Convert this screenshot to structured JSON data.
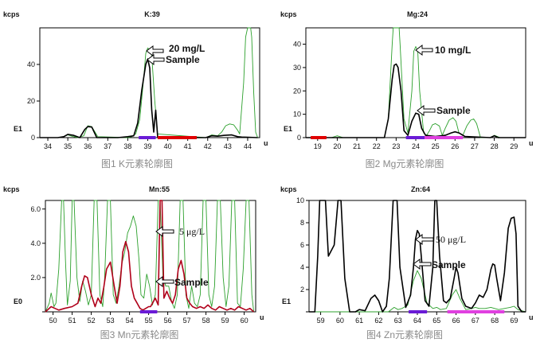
{
  "figure": {
    "panels": [
      {
        "title": "K:39",
        "caption": "图1 K元素轮廓图",
        "unit_label": "kcps",
        "axis_tag": "E1",
        "x_unit": "u",
        "annotations": [
          {
            "text": "20 mg/L"
          },
          {
            "text": "Sample"
          }
        ]
      },
      {
        "title": "Mg:24",
        "caption": "图2 Mg元素轮廓图",
        "unit_label": "kcps",
        "axis_tag": "E1",
        "x_unit": "u",
        "annotations": [
          {
            "text": "10 mg/L"
          },
          {
            "text": "Sample"
          }
        ]
      },
      {
        "title": "Mn:55",
        "caption": "图3 Mn元素轮廓图",
        "unit_label": "kcps",
        "axis_tag": "E0",
        "x_unit": "u",
        "annotations": [
          {
            "text": "5 μg/L"
          },
          {
            "text": "Sample"
          }
        ]
      },
      {
        "title": "Zn:64",
        "caption": "图4 Zn元素轮廓图",
        "unit_label": "kcps",
        "axis_tag": "E1",
        "x_unit": "u",
        "annotations": [
          {
            "text": "50 μg/L"
          },
          {
            "text": "Sample"
          }
        ]
      }
    ]
  },
  "chart_data": [
    {
      "type": "line",
      "title": "K:39",
      "xlabel": "u",
      "ylabel": "kcps",
      "xlim": [
        33.6,
        44.6
      ],
      "ylim": [
        0,
        60
      ],
      "xticks": [
        34,
        35,
        36,
        37,
        38,
        39,
        40,
        41,
        42,
        43,
        44
      ],
      "yticks": [
        0,
        20,
        40
      ],
      "series": [
        {
          "name": "20 mg/L",
          "color": "#2ca02c",
          "x": [
            33.6,
            34.5,
            34.8,
            35.0,
            35.2,
            35.5,
            35.8,
            36.0,
            36.2,
            36.5,
            38.0,
            38.2,
            38.4,
            38.6,
            38.8,
            38.9,
            39.0,
            39.1,
            39.2,
            39.35,
            39.5,
            41.9,
            42.2,
            42.5,
            42.7,
            42.9,
            43.1,
            43.3,
            43.5,
            43.6,
            43.8,
            43.9,
            44.0,
            44.1,
            44.15,
            44.2,
            44.3,
            44.4,
            44.5
          ],
          "y": [
            0,
            0,
            0.5,
            1.5,
            0.8,
            0,
            1.0,
            6.5,
            6.0,
            0.5,
            0,
            0.5,
            2.0,
            10.0,
            33.0,
            46.0,
            49.0,
            48.0,
            45.0,
            20.0,
            2.0,
            0,
            1.5,
            1.0,
            3.0,
            6.5,
            7.5,
            7.0,
            4.0,
            2.0,
            30.0,
            55.0,
            60.0,
            60.0,
            60.0,
            55.0,
            25.0,
            3.0,
            0
          ]
        },
        {
          "name": "Sample",
          "color": "#000000",
          "x": [
            33.6,
            34.5,
            34.8,
            35.0,
            35.3,
            35.6,
            35.85,
            36.0,
            36.2,
            36.45,
            37.5,
            38.0,
            38.3,
            38.5,
            38.7,
            38.9,
            39.0,
            39.1,
            39.2,
            39.3,
            39.4,
            39.5,
            41.9,
            42.2,
            42.5,
            42.8,
            43.2,
            43.5,
            43.7,
            44.0,
            44.5
          ],
          "y": [
            0,
            0,
            0.5,
            1.8,
            1.2,
            0,
            4.5,
            6.0,
            5.8,
            0,
            0,
            0.5,
            1.0,
            8.0,
            26.0,
            40.0,
            43.0,
            38.0,
            15.0,
            3.0,
            15.0,
            0,
            0,
            1.0,
            0.8,
            1.2,
            1.5,
            0.5,
            0.3,
            0.2,
            0
          ]
        }
      ],
      "markers": [
        {
          "from": 38.55,
          "to": 39.4,
          "color": "#6a1bd6"
        },
        {
          "from": 39.5,
          "to": 41.45,
          "color": "#e00000"
        }
      ]
    },
    {
      "type": "line",
      "title": "Mg:24",
      "xlabel": "u",
      "ylabel": "kcps",
      "xlim": [
        18.4,
        29.6
      ],
      "ylim": [
        0,
        47
      ],
      "xticks": [
        19,
        20,
        21,
        22,
        23,
        24,
        25,
        26,
        27,
        28,
        29
      ],
      "yticks": [
        0,
        10,
        20,
        30,
        40
      ],
      "series": [
        {
          "name": "10 mg/L",
          "color": "#2ca02c",
          "x": [
            18.4,
            19.7,
            20.0,
            20.3,
            22.4,
            22.6,
            22.8,
            22.85,
            23.15,
            23.2,
            23.4,
            23.6,
            23.8,
            23.9,
            24.0,
            24.1,
            24.2,
            24.4,
            24.55,
            24.7,
            24.85,
            25.0,
            25.2,
            25.35,
            25.5,
            25.7,
            25.9,
            26.05,
            26.2,
            26.4,
            26.6,
            26.8,
            26.95,
            27.1,
            27.3,
            27.8,
            28.0,
            28.3,
            29.6
          ],
          "y": [
            0,
            0,
            0.8,
            0,
            0,
            8.0,
            40.0,
            47.0,
            47.0,
            40.0,
            8.0,
            2.0,
            20.0,
            37.0,
            39.0,
            37.0,
            20.0,
            2.0,
            1.0,
            3.0,
            5.5,
            6.0,
            5.0,
            1.0,
            4.0,
            7.5,
            8.5,
            7.0,
            2.0,
            1.0,
            5.0,
            7.5,
            8.0,
            6.0,
            0,
            0,
            1.0,
            0,
            0
          ]
        },
        {
          "name": "Sample",
          "color": "#000000",
          "x": [
            18.4,
            22.4,
            22.6,
            22.8,
            22.9,
            23.0,
            23.1,
            23.25,
            23.4,
            23.6,
            23.8,
            24.0,
            24.15,
            24.3,
            24.5,
            25.0,
            25.5,
            25.8,
            26.0,
            26.2,
            26.5,
            27.8,
            28.0,
            28.2,
            29.6
          ],
          "y": [
            0,
            0,
            8.0,
            25.0,
            31.0,
            31.5,
            30.0,
            20.0,
            3.0,
            1.0,
            7.0,
            10.5,
            10.0,
            4.0,
            1.0,
            0.5,
            1.0,
            2.0,
            2.5,
            2.0,
            0.5,
            0,
            0.8,
            0,
            0
          ]
        }
      ],
      "markers": [
        {
          "from": 18.65,
          "to": 19.45,
          "color": "#e00000"
        },
        {
          "from": 23.5,
          "to": 24.45,
          "color": "#6a1bd6"
        },
        {
          "from": 24.45,
          "to": 26.4,
          "color": "#e040e0"
        }
      ]
    },
    {
      "type": "line",
      "title": "Mn:55",
      "xlabel": "u",
      "ylabel": "kcps",
      "xlim": [
        49.6,
        60.6
      ],
      "ylim": [
        0,
        6.5
      ],
      "xticks": [
        50,
        51,
        52,
        53,
        54,
        55,
        56,
        57,
        58,
        59,
        60
      ],
      "yticks": [
        0,
        2.0,
        4.0,
        6.0
      ],
      "ytick_labels": [
        "",
        "2.0",
        "4.0",
        "6.0"
      ],
      "series": [
        {
          "name": "5 μg/L",
          "color": "#2ca02c",
          "x": [
            49.6,
            49.8,
            49.9,
            50.05,
            50.15,
            50.3,
            50.45,
            50.55,
            50.65,
            50.75,
            50.9,
            51.0,
            51.1,
            51.25,
            51.4,
            51.55,
            51.7,
            51.85,
            52.0,
            52.15,
            52.3,
            52.45,
            52.6,
            52.7,
            52.85,
            53.0,
            53.15,
            53.3,
            53.45,
            53.6,
            53.75,
            53.9,
            54.05,
            54.2,
            54.35,
            54.5,
            54.6,
            54.75,
            54.9,
            55.05,
            55.2,
            55.35,
            55.5,
            55.6,
            55.75,
            55.9,
            56.05,
            56.2,
            56.35,
            56.5,
            56.65,
            56.8,
            56.95,
            57.1,
            57.25,
            57.4,
            57.55,
            57.7,
            57.85,
            58.0,
            58.15,
            58.3,
            58.45,
            58.6,
            58.75,
            58.9,
            59.05,
            59.2,
            59.35,
            59.5,
            59.65,
            59.8,
            59.95,
            60.1,
            60.25,
            60.4,
            60.5
          ],
          "y": [
            0,
            0.5,
            1.1,
            0.3,
            0.5,
            2.5,
            6.5,
            6.5,
            3.0,
            0.4,
            1.8,
            6.5,
            6.5,
            2.0,
            0.6,
            1.8,
            1.2,
            0.4,
            1.0,
            6.5,
            6.5,
            1.0,
            0.3,
            2.0,
            6.5,
            6.5,
            1.0,
            0.5,
            1.5,
            2.8,
            3.5,
            4.6,
            5.0,
            5.6,
            5.0,
            3.0,
            1.0,
            0.8,
            2.2,
            1.5,
            0.4,
            1.0,
            6.5,
            6.5,
            2.0,
            1.5,
            1.5,
            0.6,
            0.2,
            1.0,
            6.5,
            6.5,
            1.0,
            0.2,
            1.5,
            0.5,
            0.3,
            1.0,
            6.5,
            6.5,
            1.0,
            0.3,
            1.5,
            6.5,
            6.5,
            2.0,
            0.3,
            1.5,
            6.5,
            6.5,
            0.5,
            0.3,
            2.5,
            6.5,
            6.5,
            1.0,
            0
          ]
        },
        {
          "name": "Sample",
          "color": "#b0001a",
          "x": [
            49.6,
            49.9,
            50.1,
            50.3,
            50.6,
            51.0,
            51.3,
            51.5,
            51.65,
            51.8,
            52.0,
            52.2,
            52.35,
            52.5,
            52.65,
            52.8,
            53.0,
            53.2,
            53.35,
            53.5,
            53.65,
            53.8,
            53.95,
            54.1,
            54.25,
            54.4,
            54.55,
            54.7,
            54.85,
            55.0,
            55.1,
            55.2,
            55.35,
            55.5,
            55.6,
            55.65,
            55.7,
            55.8,
            55.95,
            56.1,
            56.25,
            56.4,
            56.55,
            56.7,
            56.85,
            57.0,
            57.15,
            57.3,
            57.5,
            57.7,
            57.9,
            58.1,
            58.3,
            58.5,
            58.7,
            58.9,
            59.1,
            59.3,
            59.5,
            59.7,
            59.9,
            60.1,
            60.3,
            60.5
          ],
          "y": [
            0,
            0.3,
            0.2,
            0.1,
            0.2,
            0.3,
            0.5,
            1.5,
            2.1,
            2.0,
            1.0,
            0.3,
            0.8,
            0.5,
            1.4,
            2.5,
            2.9,
            1.5,
            0.5,
            1.5,
            3.5,
            4.1,
            3.5,
            1.5,
            0.8,
            0.5,
            0.2,
            0.1,
            0.2,
            0.3,
            0.3,
            0.5,
            0.8,
            0.4,
            6.5,
            6.5,
            6.5,
            0.8,
            1.2,
            0.8,
            0.5,
            1.0,
            2.5,
            3.0,
            2.2,
            0.8,
            0.5,
            0.3,
            0.2,
            0.3,
            0.2,
            0.4,
            0.2,
            0.1,
            0.3,
            0.2,
            0.1,
            0.2,
            0.1,
            0.3,
            0.2,
            0.1,
            0.2,
            0
          ]
        }
      ],
      "markers": [
        {
          "from": 54.55,
          "to": 55.45,
          "color": "#6a1bd6"
        }
      ]
    },
    {
      "type": "line",
      "title": "Zn:64",
      "xlabel": "u",
      "ylabel": "kcps",
      "xlim": [
        58.4,
        69.6
      ],
      "ylim": [
        0,
        10
      ],
      "xticks": [
        59,
        60,
        61,
        62,
        63,
        64,
        65,
        66,
        67,
        68,
        69
      ],
      "yticks": [
        0,
        2,
        4,
        6,
        8,
        10
      ],
      "ytick_labels": [
        "",
        "2",
        "4",
        "6",
        "8",
        "10"
      ],
      "series": [
        {
          "name": "50 μg/L",
          "color": "#2ca02c",
          "x": [
            58.4,
            62.5,
            62.8,
            63.0,
            63.2,
            63.5,
            63.8,
            64.0,
            64.2,
            64.5,
            64.8,
            65.0,
            65.2,
            65.5,
            65.8,
            66.0,
            66.2,
            66.5,
            66.8,
            67.0,
            67.2,
            67.5,
            67.8,
            68.0,
            68.2,
            68.5,
            68.8,
            69.0,
            69.2,
            69.6
          ],
          "y": [
            0,
            0,
            0.4,
            0.2,
            0.3,
            0.6,
            2.8,
            3.7,
            3.0,
            0.8,
            0.3,
            0.4,
            0.2,
            0.3,
            1.5,
            2.0,
            1.2,
            0.2,
            0.3,
            0.4,
            0.3,
            0.3,
            0.4,
            0.3,
            0.2,
            0.3,
            0.4,
            0.5,
            0.2,
            0
          ]
        },
        {
          "name": "Sample",
          "color": "#000000",
          "x": [
            58.4,
            58.7,
            58.85,
            58.95,
            59.25,
            59.4,
            59.7,
            59.9,
            60.05,
            60.25,
            60.5,
            60.8,
            61.0,
            61.3,
            61.6,
            61.8,
            62.0,
            62.2,
            62.4,
            62.55,
            62.75,
            62.95,
            63.1,
            63.4,
            63.65,
            63.8,
            63.9,
            64.0,
            64.1,
            64.2,
            64.4,
            64.6,
            64.8,
            64.9,
            65.0,
            65.15,
            65.35,
            65.5,
            65.7,
            65.9,
            66.0,
            66.1,
            66.3,
            66.5,
            66.8,
            67.0,
            67.2,
            67.4,
            67.6,
            67.8,
            67.9,
            68.0,
            68.1,
            68.3,
            68.5,
            68.7,
            68.85,
            69.0,
            69.1,
            69.2,
            69.4,
            69.6
          ],
          "y": [
            0,
            0,
            5.0,
            10.0,
            10.0,
            5.0,
            6.0,
            10.0,
            10.0,
            3.0,
            0,
            0,
            0.2,
            0.1,
            1.2,
            1.5,
            1.0,
            0,
            0.5,
            3.0,
            10.0,
            10.0,
            4.0,
            0.4,
            1.5,
            4.0,
            6.5,
            7.3,
            7.0,
            5.0,
            1.0,
            0.5,
            4.0,
            10.0,
            10.0,
            5.0,
            1.0,
            0.8,
            1.2,
            3.0,
            4.0,
            3.5,
            1.2,
            0.5,
            0.3,
            0.8,
            1.5,
            1.3,
            2.0,
            3.8,
            4.3,
            4.2,
            3.0,
            1.0,
            3.5,
            7.5,
            8.4,
            8.5,
            7.0,
            0.5,
            0,
            0
          ]
        }
      ],
      "markers": [
        {
          "from": 63.55,
          "to": 64.5,
          "color": "#6a1bd6"
        },
        {
          "from": 65.55,
          "to": 68.5,
          "color": "#e040e0"
        }
      ]
    }
  ]
}
